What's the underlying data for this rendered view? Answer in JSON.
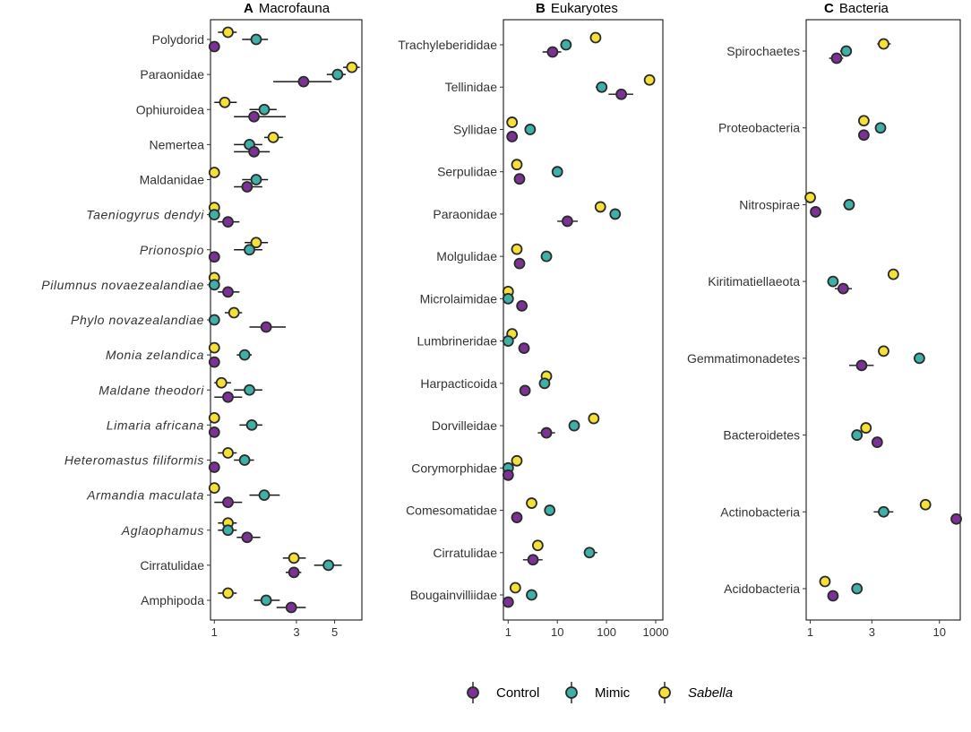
{
  "legend": {
    "items": [
      {
        "key": "control",
        "label": "Control",
        "color": "#7B3294",
        "italic": false
      },
      {
        "key": "mimic",
        "label": "Mimic",
        "color": "#3FB0A8",
        "italic": false
      },
      {
        "key": "sabella",
        "label": "Sabella",
        "color": "#F5E03A",
        "italic": true
      }
    ]
  },
  "chart_data": [
    {
      "type": "scatter",
      "panel_letter": "A",
      "title": "Macrofauna",
      "x_scale": "log",
      "xlim": [
        0.95,
        7.2
      ],
      "x_ticks": [
        1,
        3,
        5
      ],
      "x_tick_labels": [
        "1",
        "3",
        "5"
      ],
      "categories": [
        "Polydorid",
        "Paraonidae",
        "Ophiuroidea",
        "Nemertea",
        "Maldanidae",
        "Taeniogyrus dendyi",
        "Prionospio",
        "Pilumnus novaezealandiae",
        "Phylo novazealandiae",
        "Monia zelandica",
        "Maldane theodori",
        "Limaria africana",
        "Heteromastus filiformis",
        "Armandia maculata",
        "Aglaophamus",
        "Cirratulidae",
        "Amphipoda"
      ],
      "italic_categories": [
        false,
        false,
        false,
        false,
        false,
        true,
        true,
        true,
        true,
        true,
        true,
        true,
        true,
        true,
        true,
        false,
        false
      ],
      "series": [
        {
          "name": "Control",
          "values": [
            1.0,
            3.3,
            1.7,
            1.7,
            1.55,
            1.2,
            1.0,
            1.2,
            2.0,
            1.0,
            1.2,
            1.0,
            1.0,
            1.2,
            1.55,
            2.9,
            2.8
          ],
          "err_low": [
            1.0,
            2.2,
            1.3,
            1.3,
            1.3,
            1.05,
            1.0,
            1.05,
            1.6,
            1.0,
            1.0,
            1.0,
            1.0,
            1.0,
            1.35,
            2.6,
            2.3
          ],
          "err_high": [
            1.0,
            4.8,
            2.6,
            2.1,
            1.9,
            1.4,
            1.0,
            1.4,
            2.6,
            1.0,
            1.45,
            1.0,
            1.0,
            1.45,
            1.85,
            3.2,
            3.4
          ]
        },
        {
          "name": "Mimic",
          "values": [
            1.75,
            5.2,
            1.95,
            1.6,
            1.75,
            1.0,
            1.6,
            1.0,
            1.0,
            1.5,
            1.6,
            1.65,
            1.5,
            1.95,
            1.2,
            4.6,
            2.0
          ],
          "err_low": [
            1.45,
            4.5,
            1.6,
            1.3,
            1.45,
            1.0,
            1.3,
            1.0,
            1.0,
            1.35,
            1.3,
            1.4,
            1.3,
            1.6,
            1.05,
            3.8,
            1.7
          ],
          "err_high": [
            2.05,
            5.8,
            2.3,
            1.9,
            2.05,
            1.0,
            1.9,
            1.0,
            1.0,
            1.65,
            1.9,
            1.9,
            1.7,
            2.4,
            1.35,
            5.5,
            2.4
          ]
        },
        {
          "name": "Sabella",
          "values": [
            1.2,
            6.3,
            1.15,
            2.2,
            1.0,
            1.0,
            1.75,
            1.0,
            1.3,
            1.0,
            1.1,
            1.0,
            1.2,
            1.0,
            1.2,
            2.9,
            1.2
          ],
          "err_low": [
            1.05,
            5.6,
            1.0,
            1.95,
            1.0,
            1.0,
            1.5,
            1.0,
            1.15,
            1.0,
            1.0,
            1.0,
            1.05,
            1.0,
            1.05,
            2.5,
            1.05
          ],
          "err_high": [
            1.35,
            7.0,
            1.35,
            2.5,
            1.0,
            1.0,
            2.05,
            1.0,
            1.45,
            1.0,
            1.25,
            1.0,
            1.35,
            1.0,
            1.35,
            3.4,
            1.35
          ]
        }
      ]
    },
    {
      "type": "scatter",
      "panel_letter": "B",
      "title": "Eukaryotes",
      "x_scale": "log",
      "xlim": [
        0.8,
        1400
      ],
      "x_ticks": [
        1,
        10,
        100,
        1000
      ],
      "x_tick_labels": [
        "1",
        "10",
        "100",
        "1000"
      ],
      "categories": [
        "Trachyleberididae",
        "Tellinidae",
        "Syllidae",
        "Serpulidae",
        "Paraonidae",
        "Molgulidae",
        "Microlaimidae",
        "Lumbrineridae",
        "Harpacticoida",
        "Dorvilleidae",
        "Corymorphidae",
        "Comesomatidae",
        "Cirratulidae",
        "Bougainvilliidae"
      ],
      "italic_categories": [
        false,
        false,
        false,
        false,
        false,
        false,
        false,
        false,
        false,
        false,
        false,
        false,
        false,
        false
      ],
      "series": [
        {
          "name": "Control",
          "values": [
            8,
            200,
            1.2,
            1.7,
            16,
            1.7,
            1.9,
            2.1,
            2.2,
            6,
            1.0,
            1.5,
            3.2,
            1.0
          ],
          "err_low": [
            5,
            110,
            1.1,
            1.5,
            10,
            1.45,
            1.5,
            1.8,
            1.8,
            4,
            1.0,
            1.3,
            2.0,
            1.0
          ],
          "err_high": [
            12,
            350,
            1.3,
            1.9,
            26,
            1.95,
            2.4,
            2.4,
            2.6,
            9,
            1.0,
            1.7,
            5.0,
            1.0
          ],
          "markers": [
            true,
            true,
            true,
            true,
            true,
            true,
            true,
            true,
            true,
            true,
            true,
            true,
            true,
            true
          ]
        },
        {
          "name": "Mimic",
          "values": [
            15,
            80,
            2.8,
            10,
            150,
            6,
            1.0,
            1.0,
            5.5,
            22,
            1.0,
            7,
            45,
            3.0
          ],
          "err_low": [
            12,
            60,
            2.5,
            8,
            120,
            5,
            1.0,
            1.0,
            5.0,
            18,
            1.0,
            6,
            35,
            2.6
          ],
          "err_high": [
            19,
            100,
            3.1,
            12,
            180,
            7,
            1.0,
            1.0,
            6.0,
            27,
            1.0,
            8,
            65,
            3.4
          ],
          "markers": [
            true,
            true,
            true,
            true,
            true,
            true,
            true,
            true,
            true,
            true,
            true,
            true,
            true,
            true
          ]
        },
        {
          "name": "Sabella",
          "values": [
            60,
            750,
            1.2,
            1.5,
            75,
            1.5,
            1.0,
            1.2,
            6,
            55,
            1.5,
            3,
            4,
            1.4
          ],
          "err_low": [
            50,
            650,
            1.1,
            1.35,
            65,
            1.3,
            1.0,
            1.1,
            5.5,
            48,
            1.3,
            2.7,
            3.3,
            1.25
          ],
          "err_high": [
            72,
            850,
            1.3,
            1.65,
            85,
            1.7,
            1.0,
            1.3,
            6.5,
            62,
            1.7,
            3.3,
            4.8,
            1.55
          ],
          "markers": [
            true,
            true,
            true,
            true,
            true,
            true,
            true,
            true,
            true,
            true,
            true,
            true,
            true,
            true
          ]
        }
      ]
    },
    {
      "type": "scatter",
      "panel_letter": "C",
      "title": "Bacteria",
      "x_scale": "log",
      "xlim": [
        0.93,
        14.5
      ],
      "x_ticks": [
        1,
        3,
        10
      ],
      "x_tick_labels": [
        "1",
        "3",
        "10"
      ],
      "categories": [
        "Spirochaetes",
        "Proteobacteria",
        "Nitrospirae",
        "Kiritimatiellaeota",
        "Gemmatimonadetes",
        "Bacteroidetes",
        "Actinobacteria",
        "Acidobacteria"
      ],
      "italic_categories": [
        false,
        false,
        false,
        false,
        false,
        false,
        false,
        false
      ],
      "series": [
        {
          "name": "Control",
          "values": [
            1.6,
            2.6,
            1.1,
            1.8,
            2.5,
            3.3,
            13.5,
            1.5
          ],
          "err_low": [
            1.4,
            2.6,
            1.1,
            1.55,
            2.0,
            3.0,
            13.5,
            1.5
          ],
          "err_high": [
            1.8,
            2.6,
            1.1,
            2.1,
            3.1,
            3.6,
            13.5,
            1.5
          ],
          "markers": [
            true,
            true,
            true,
            true,
            true,
            true,
            true,
            true
          ]
        },
        {
          "name": "Mimic",
          "values": [
            1.9,
            3.5,
            2.0,
            1.5,
            7.0,
            2.3,
            3.7,
            2.3
          ],
          "err_low": [
            1.7,
            3.5,
            1.8,
            1.5,
            6.3,
            2.3,
            3.1,
            2.3
          ],
          "err_high": [
            2.1,
            3.5,
            2.2,
            1.5,
            7.7,
            2.3,
            4.4,
            2.3
          ],
          "markers": [
            true,
            true,
            true,
            true,
            true,
            true,
            true,
            true
          ]
        },
        {
          "name": "Sabella",
          "values": [
            3.7,
            2.6,
            1.0,
            4.4,
            3.7,
            2.7,
            7.8,
            1.3
          ],
          "err_low": [
            3.3,
            2.6,
            1.0,
            4.0,
            3.4,
            2.7,
            7.2,
            1.3
          ],
          "err_high": [
            4.2,
            2.6,
            1.0,
            4.8,
            4.0,
            2.7,
            8.4,
            1.3
          ],
          "markers": [
            true,
            true,
            true,
            true,
            true,
            true,
            true,
            true
          ]
        }
      ]
    }
  ]
}
